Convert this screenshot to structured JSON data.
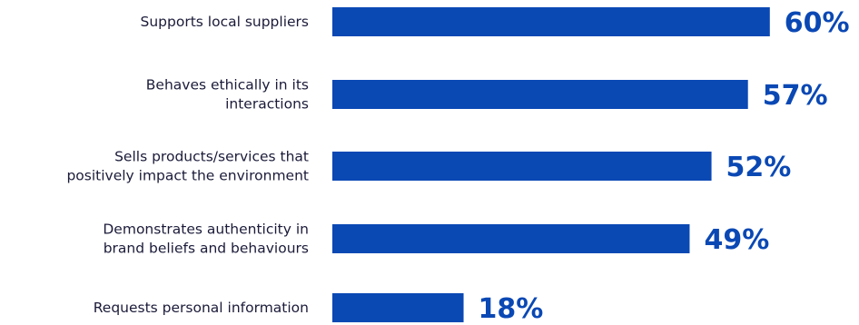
{
  "chart_data": {
    "type": "bar",
    "orientation": "horizontal",
    "categories": [
      "Supports local suppliers",
      "Behaves ethically in its interactions",
      "Sells products/services that positively impact the environment",
      "Demonstrates authenticity in brand beliefs and behaviours",
      "Requests personal information"
    ],
    "category_lines": [
      [
        "Supports local suppliers"
      ],
      [
        "Behaves ethically in its",
        "interactions"
      ],
      [
        "Sells products/services that",
        "positively impact the environment"
      ],
      [
        "Demonstrates authenticity in",
        "brand beliefs and behaviours"
      ],
      [
        "Requests personal information"
      ]
    ],
    "values": [
      60,
      57,
      52,
      49,
      18
    ],
    "value_labels": [
      "60%",
      "57%",
      "52%",
      "49%",
      "18%"
    ],
    "unit": "%",
    "xlim": [
      0,
      60
    ],
    "grid": false,
    "legend": "none",
    "colors": {
      "bar": "#0a48b4",
      "value_label": "#0a48b4",
      "category_label": "#1b1b3a"
    }
  }
}
